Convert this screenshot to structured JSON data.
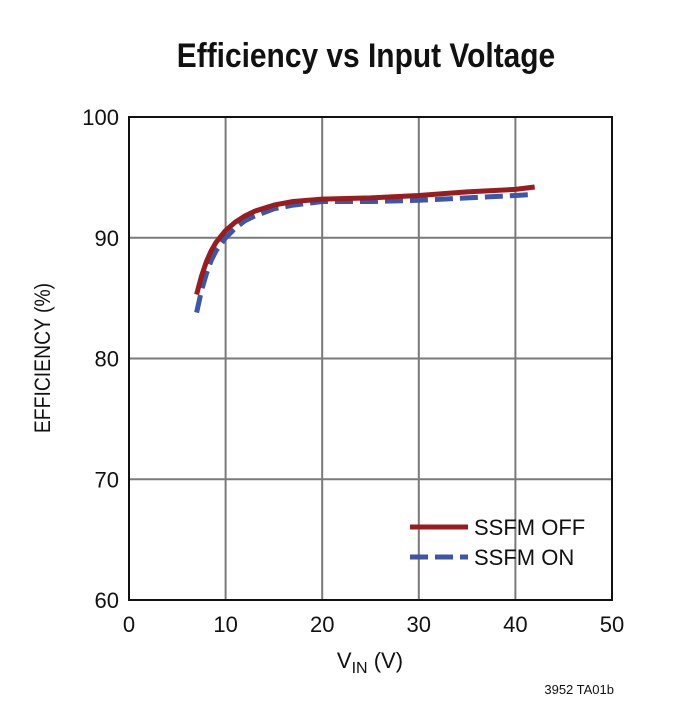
{
  "chart_data": {
    "type": "line",
    "title": "Efficiency vs Input Voltage",
    "xlabel_main": "V",
    "xlabel_sub": "IN",
    "xlabel_unit": " (V)",
    "ylabel": "EFFICIENCY (%)",
    "xlim": [
      0,
      50
    ],
    "ylim": [
      60,
      100
    ],
    "xticks": [
      0,
      10,
      20,
      30,
      40,
      50
    ],
    "yticks": [
      60,
      70,
      80,
      90,
      100
    ],
    "grid": true,
    "legend_placement": "bottom-right",
    "series": [
      {
        "name": "SSFM OFF",
        "color": "#9b1c1f",
        "dash": false,
        "x": [
          7,
          7.5,
          8,
          8.5,
          9,
          10,
          11,
          12,
          13,
          15,
          17,
          20,
          25,
          30,
          35,
          40,
          42
        ],
        "y": [
          85.3,
          86.8,
          88.0,
          88.9,
          89.6,
          90.6,
          91.3,
          91.8,
          92.2,
          92.7,
          93.0,
          93.2,
          93.3,
          93.5,
          93.8,
          94.0,
          94.2
        ]
      },
      {
        "name": "SSFM ON",
        "color": "#3a57a8",
        "dash": true,
        "x": [
          7,
          7.5,
          8,
          8.5,
          9,
          10,
          11,
          12,
          13,
          15,
          17,
          20,
          25,
          30,
          35,
          40,
          42
        ],
        "y": [
          83.8,
          85.6,
          87.0,
          88.1,
          88.9,
          90.0,
          90.8,
          91.4,
          91.8,
          92.4,
          92.7,
          93.0,
          93.0,
          93.1,
          93.3,
          93.5,
          93.6
        ]
      }
    ]
  },
  "footnote": "3952 TA01b"
}
